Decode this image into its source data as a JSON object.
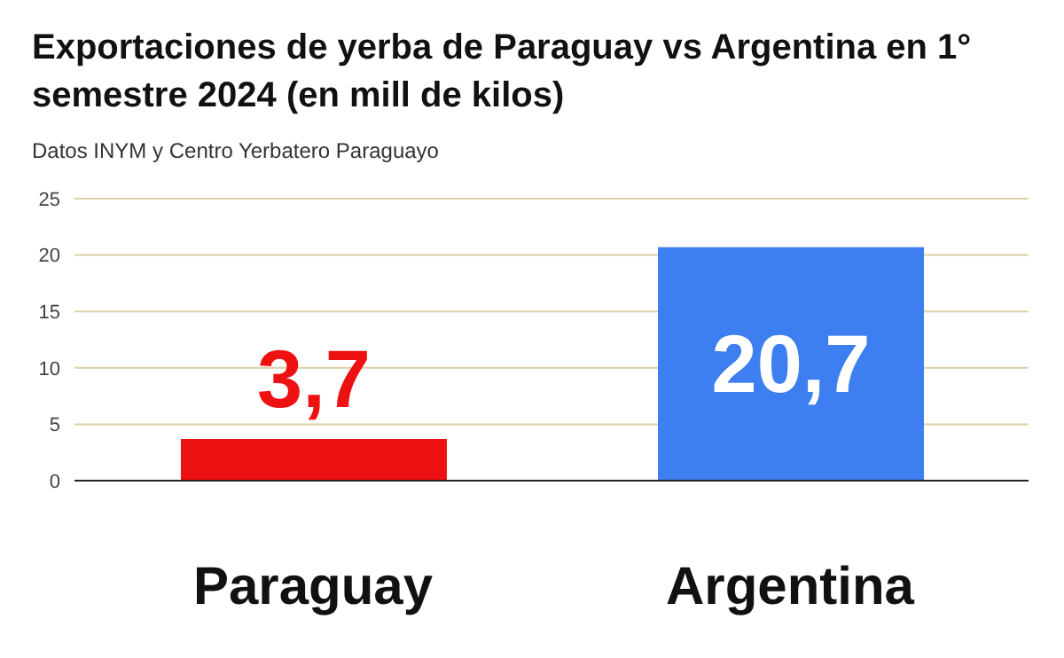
{
  "chart_data": {
    "type": "bar",
    "title": "Exportaciones de yerba de Paraguay vs Argentina en 1° semestre 2024 (en mill de kilos)",
    "subtitle": "Datos INYM y Centro Yerbatero Paraguayo",
    "categories": [
      "Paraguay",
      "Argentina"
    ],
    "values": [
      3.7,
      20.7
    ],
    "colors": [
      "#ee1111",
      "#3d7ff0"
    ],
    "value_labels": [
      "3,7",
      "20,7"
    ],
    "ylim": [
      0,
      25
    ],
    "yticks": [
      0,
      5,
      10,
      15,
      20,
      25
    ],
    "grid": "y"
  }
}
